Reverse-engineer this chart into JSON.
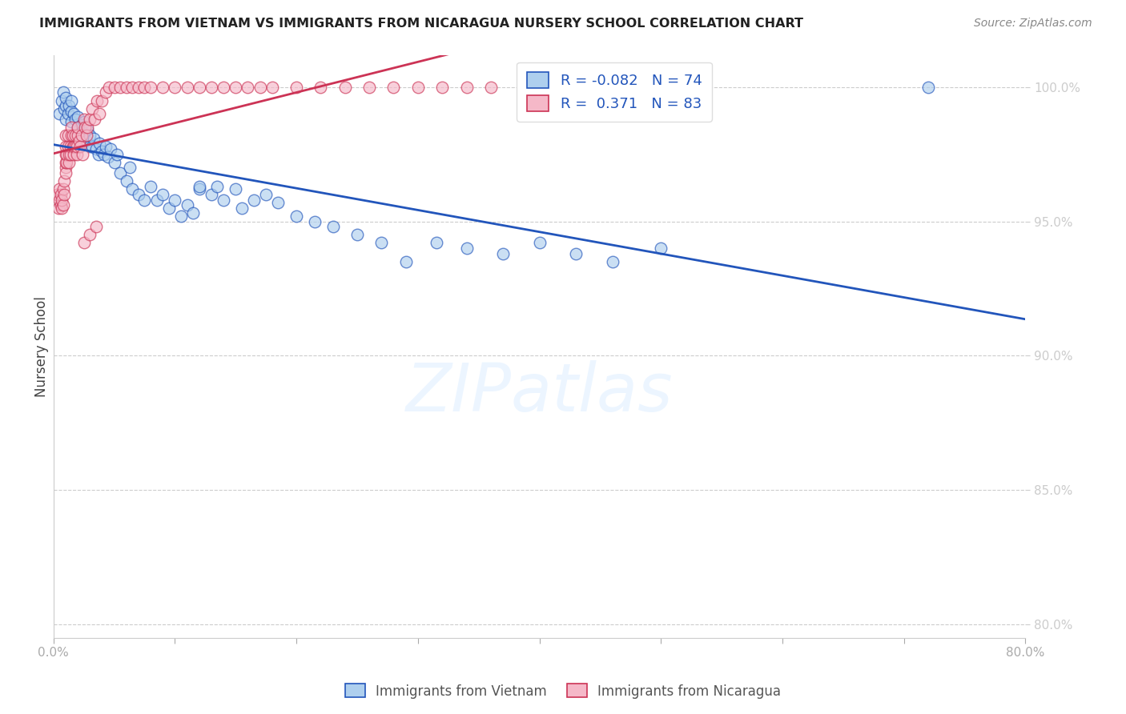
{
  "title": "IMMIGRANTS FROM VIETNAM VS IMMIGRANTS FROM NICARAGUA NURSERY SCHOOL CORRELATION CHART",
  "source": "Source: ZipAtlas.com",
  "ylabel": "Nursery School",
  "legend_label_1": "Immigrants from Vietnam",
  "legend_label_2": "Immigrants from Nicaragua",
  "R1": -0.082,
  "N1": 74,
  "R2": 0.371,
  "N2": 83,
  "color_vietnam": "#aecfee",
  "color_nicaragua": "#f5b8c8",
  "line_color_vietnam": "#2255bb",
  "line_color_nicaragua": "#cc3355",
  "xmin": 0.0,
  "xmax": 0.8,
  "ymin": 0.795,
  "ymax": 1.012,
  "xticks": [
    0.0,
    0.1,
    0.2,
    0.3,
    0.4,
    0.5,
    0.6,
    0.7,
    0.8
  ],
  "yticks": [
    0.8,
    0.85,
    0.9,
    0.95,
    1.0
  ],
  "xtick_labels": [
    "0.0%",
    "",
    "",
    "",
    "",
    "",
    "",
    "",
    "80.0%"
  ],
  "ytick_labels": [
    "80.0%",
    "85.0%",
    "90.0%",
    "95.0%",
    "100.0%"
  ],
  "watermark": "ZIPatlas",
  "vietnam_x": [
    0.005,
    0.007,
    0.008,
    0.009,
    0.01,
    0.01,
    0.01,
    0.012,
    0.013,
    0.015,
    0.015,
    0.015,
    0.017,
    0.018,
    0.02,
    0.02,
    0.022,
    0.023,
    0.025,
    0.025,
    0.027,
    0.028,
    0.03,
    0.03,
    0.032,
    0.033,
    0.035,
    0.037,
    0.038,
    0.04,
    0.042,
    0.043,
    0.045,
    0.047,
    0.05,
    0.052,
    0.055,
    0.06,
    0.063,
    0.065,
    0.07,
    0.075,
    0.08,
    0.085,
    0.09,
    0.095,
    0.1,
    0.105,
    0.11,
    0.115,
    0.12,
    0.13,
    0.135,
    0.14,
    0.15,
    0.155,
    0.165,
    0.175,
    0.185,
    0.2,
    0.215,
    0.23,
    0.25,
    0.27,
    0.29,
    0.315,
    0.34,
    0.37,
    0.4,
    0.43,
    0.46,
    0.5,
    0.72,
    0.12
  ],
  "vietnam_y": [
    0.99,
    0.995,
    0.998,
    0.992,
    0.988,
    0.993,
    0.996,
    0.99,
    0.993,
    0.987,
    0.991,
    0.995,
    0.99,
    0.988,
    0.985,
    0.989,
    0.983,
    0.986,
    0.982,
    0.987,
    0.98,
    0.984,
    0.978,
    0.982,
    0.978,
    0.981,
    0.977,
    0.975,
    0.979,
    0.976,
    0.975,
    0.978,
    0.974,
    0.977,
    0.972,
    0.975,
    0.968,
    0.965,
    0.97,
    0.962,
    0.96,
    0.958,
    0.963,
    0.958,
    0.96,
    0.955,
    0.958,
    0.952,
    0.956,
    0.953,
    0.962,
    0.96,
    0.963,
    0.958,
    0.962,
    0.955,
    0.958,
    0.96,
    0.957,
    0.952,
    0.95,
    0.948,
    0.945,
    0.942,
    0.935,
    0.942,
    0.94,
    0.938,
    0.942,
    0.938,
    0.935,
    0.94,
    1.0,
    0.963
  ],
  "nicaragua_x": [
    0.003,
    0.004,
    0.005,
    0.005,
    0.006,
    0.006,
    0.007,
    0.007,
    0.008,
    0.008,
    0.009,
    0.009,
    0.01,
    0.01,
    0.01,
    0.01,
    0.01,
    0.01,
    0.011,
    0.011,
    0.012,
    0.012,
    0.013,
    0.013,
    0.014,
    0.014,
    0.015,
    0.015,
    0.016,
    0.016,
    0.017,
    0.017,
    0.018,
    0.018,
    0.019,
    0.019,
    0.02,
    0.02,
    0.021,
    0.022,
    0.023,
    0.024,
    0.025,
    0.026,
    0.027,
    0.028,
    0.03,
    0.032,
    0.034,
    0.036,
    0.038,
    0.04,
    0.043,
    0.046,
    0.05,
    0.055,
    0.06,
    0.065,
    0.07,
    0.075,
    0.08,
    0.09,
    0.1,
    0.11,
    0.12,
    0.13,
    0.14,
    0.15,
    0.16,
    0.17,
    0.18,
    0.2,
    0.22,
    0.24,
    0.26,
    0.28,
    0.3,
    0.32,
    0.34,
    0.36,
    0.025,
    0.03,
    0.035
  ],
  "nicaragua_y": [
    0.96,
    0.955,
    0.958,
    0.962,
    0.956,
    0.96,
    0.955,
    0.958,
    0.962,
    0.956,
    0.965,
    0.96,
    0.97,
    0.968,
    0.972,
    0.975,
    0.978,
    0.982,
    0.972,
    0.975,
    0.978,
    0.982,
    0.972,
    0.975,
    0.975,
    0.978,
    0.982,
    0.985,
    0.978,
    0.982,
    0.975,
    0.978,
    0.978,
    0.982,
    0.975,
    0.978,
    0.982,
    0.985,
    0.98,
    0.978,
    0.982,
    0.975,
    0.988,
    0.985,
    0.982,
    0.985,
    0.988,
    0.992,
    0.988,
    0.995,
    0.99,
    0.995,
    0.998,
    1.0,
    1.0,
    1.0,
    1.0,
    1.0,
    1.0,
    1.0,
    1.0,
    1.0,
    1.0,
    1.0,
    1.0,
    1.0,
    1.0,
    1.0,
    1.0,
    1.0,
    1.0,
    1.0,
    1.0,
    1.0,
    1.0,
    1.0,
    1.0,
    1.0,
    1.0,
    1.0,
    0.942,
    0.945,
    0.948
  ]
}
